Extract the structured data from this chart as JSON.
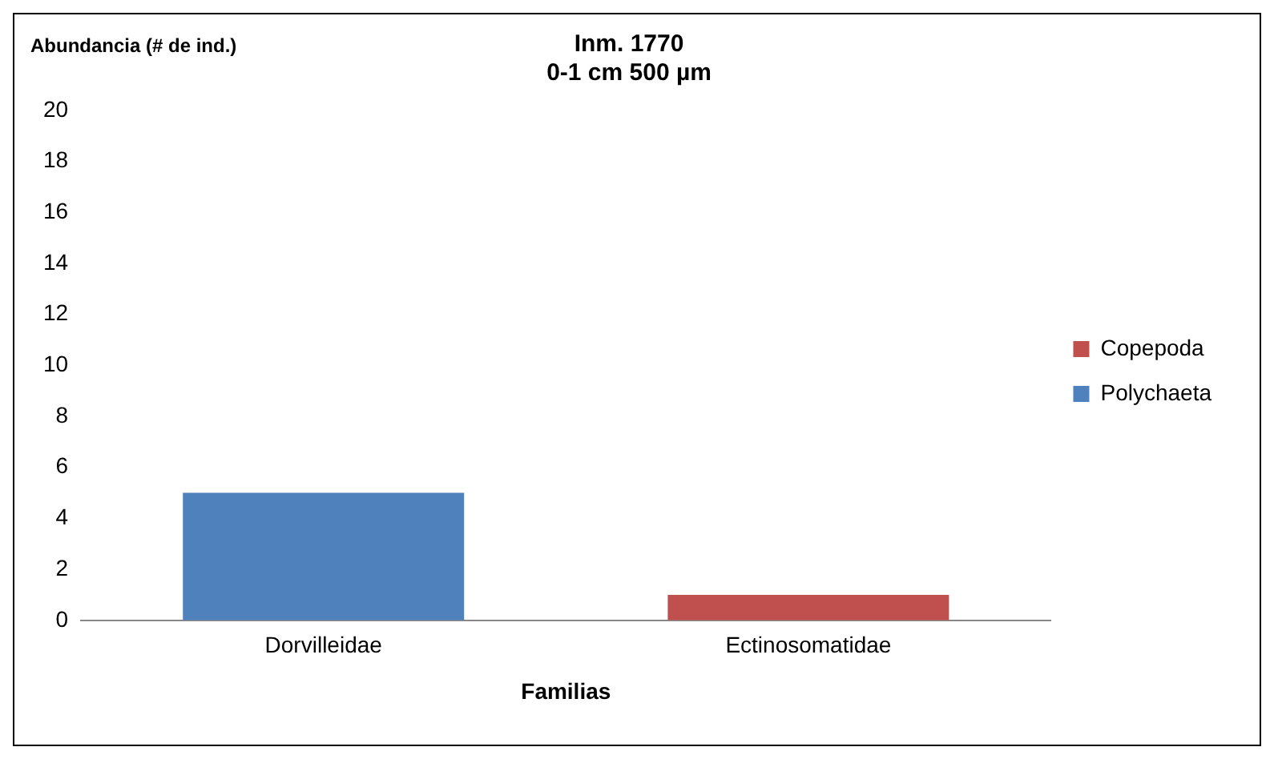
{
  "chart_data": {
    "type": "bar",
    "title": [
      "Inm. 1770",
      "0-1 cm 500 µm"
    ],
    "ylabel": "Abundancia (# de ind.)",
    "xlabel": "Familias",
    "categories": [
      "Dorvilleidae",
      "Ectinosomatidae"
    ],
    "series": [
      {
        "name": "Polychaeta",
        "color": "#4f81bd",
        "values": [
          5,
          null
        ]
      },
      {
        "name": "Copepoda",
        "color": "#c0504d",
        "values": [
          null,
          1
        ]
      }
    ],
    "stacked": true,
    "ylim": [
      0,
      20
    ],
    "yticks": [
      0,
      2,
      4,
      6,
      8,
      10,
      12,
      14,
      16,
      18,
      20
    ],
    "grid": false,
    "legend": "right"
  }
}
